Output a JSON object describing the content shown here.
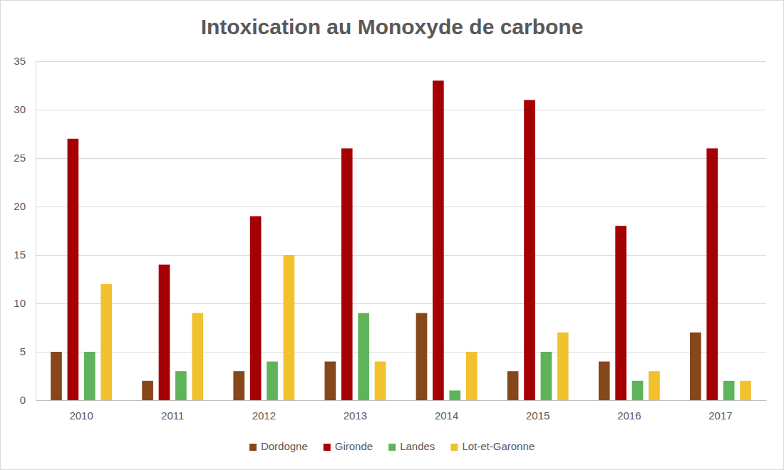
{
  "chart_data": {
    "type": "bar",
    "title": "Intoxication au Monoxyde de carbone",
    "categories": [
      "2010",
      "2011",
      "2012",
      "2013",
      "2014",
      "2015",
      "2016",
      "2017"
    ],
    "series": [
      {
        "name": "Dordogne",
        "color": "#86471d",
        "values": [
          5,
          2,
          3,
          4,
          9,
          3,
          4,
          7
        ]
      },
      {
        "name": "Gironde",
        "color": "#a50003",
        "values": [
          27,
          14,
          19,
          26,
          33,
          31,
          18,
          26
        ]
      },
      {
        "name": "Landes",
        "color": "#5fb35b",
        "values": [
          5,
          3,
          4,
          9,
          1,
          5,
          2,
          2
        ]
      },
      {
        "name": "Lot-et-Garonne",
        "color": "#f2c12e",
        "values": [
          12,
          9,
          15,
          4,
          5,
          7,
          3,
          2
        ]
      }
    ],
    "ylim": [
      0,
      35
    ],
    "yticks": [
      0,
      5,
      10,
      15,
      20,
      25,
      30,
      35
    ],
    "grid": true,
    "legend": "bottom"
  }
}
